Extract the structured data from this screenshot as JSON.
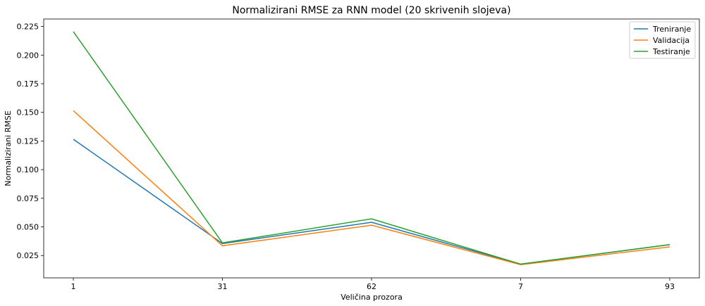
{
  "chart_data": {
    "type": "line",
    "title": "Normalizirani RMSE za RNN model (20 skrivenih slojeva)",
    "xlabel": "Veličina prozora",
    "ylabel": "Normalizirani RMSE",
    "categories": [
      "1",
      "31",
      "62",
      "7",
      "93"
    ],
    "ylim": [
      0.0055,
      0.2315
    ],
    "yticks": [
      "0.025",
      "0.050",
      "0.075",
      "0.100",
      "0.125",
      "0.150",
      "0.175",
      "0.200",
      "0.225"
    ],
    "grid": false,
    "legend_position": "top-right",
    "series": [
      {
        "name": "Treniranje",
        "color": "#1f77b4",
        "values": [
          0.1265,
          0.0355,
          0.054,
          0.0175,
          0.0345
        ]
      },
      {
        "name": "Validacija",
        "color": "#ff7f0e",
        "values": [
          0.1515,
          0.0335,
          0.0515,
          0.017,
          0.0325
        ]
      },
      {
        "name": "Testiranje",
        "color": "#2ca02c",
        "values": [
          0.2205,
          0.036,
          0.057,
          0.0175,
          0.0345
        ]
      }
    ]
  }
}
